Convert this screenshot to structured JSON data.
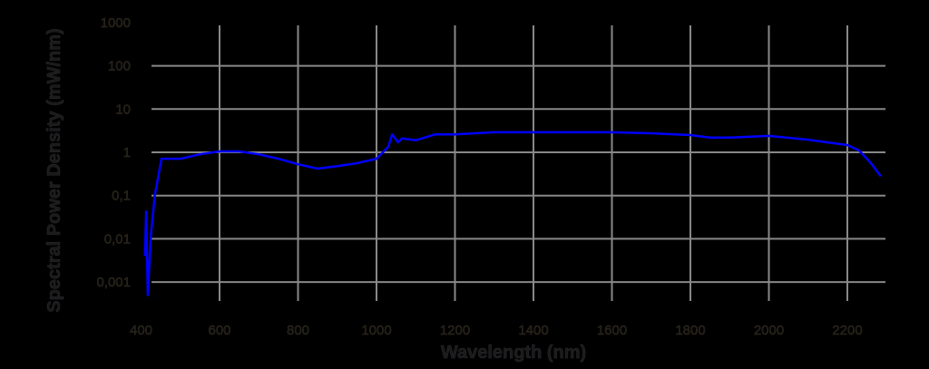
{
  "chart_data": {
    "type": "line",
    "title": "",
    "xlabel": "Wavelength (nm)",
    "ylabel": "Spectral Power Density (mW/nm)",
    "x_ticks": [
      400,
      600,
      800,
      1000,
      1200,
      1400,
      1600,
      1800,
      2000,
      2200
    ],
    "x_tick_labels": [
      "400",
      "600",
      "800",
      "1000",
      "1200",
      "1400",
      "1600",
      "1800",
      "2000",
      "2200"
    ],
    "y_scale": "log",
    "y_ticks": [
      0.001,
      0.01,
      0.1,
      1,
      10,
      100,
      1000
    ],
    "y_tick_labels": [
      "0,001",
      "0,01",
      "0,1",
      "1",
      "10",
      "100",
      "1000"
    ],
    "xlim": [
      400,
      2290
    ],
    "ylim": [
      0.0003,
      1000
    ],
    "grid": true,
    "legend": null,
    "series": [
      {
        "name": "Spectral Power Density",
        "color": "#0000ff",
        "x": [
          410,
          413,
          417,
          425,
          435,
          452,
          500,
          550,
          600,
          650,
          700,
          750,
          800,
          850,
          900,
          950,
          1000,
          1030,
          1040,
          1055,
          1065,
          1100,
          1150,
          1200,
          1300,
          1400,
          1500,
          1600,
          1700,
          1800,
          1850,
          1900,
          2000,
          2100,
          2200,
          2230,
          2260,
          2285
        ],
        "values": [
          0.004,
          0.043,
          0.0005,
          0.012,
          0.1,
          0.71,
          0.71,
          0.9,
          1.05,
          1.05,
          0.9,
          0.71,
          0.53,
          0.42,
          0.48,
          0.56,
          0.71,
          1.34,
          2.6,
          1.7,
          2.1,
          1.9,
          2.6,
          2.6,
          2.9,
          2.9,
          2.9,
          2.9,
          2.75,
          2.5,
          2.2,
          2.2,
          2.4,
          1.96,
          1.47,
          1.1,
          0.56,
          0.28
        ]
      }
    ]
  },
  "colors": {
    "background": "#000000",
    "grid": "#888888",
    "line": "#0000ff",
    "text": "#1a1a1a"
  }
}
